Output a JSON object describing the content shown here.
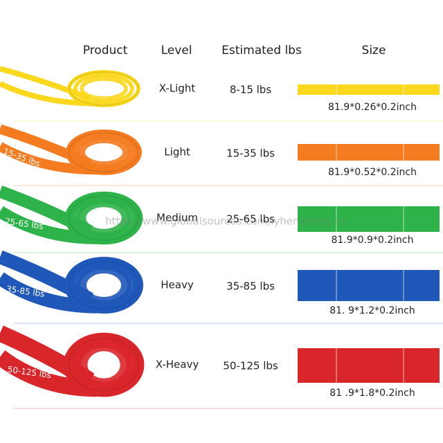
{
  "header": {
    "product": "Product",
    "level": "Level",
    "estimated": "Estimated lbs",
    "size": "Size"
  },
  "rows": [
    {
      "level": "X-Light",
      "lbs": "8-15 lbs",
      "size": "81.9*0.26*0.2inch",
      "color": "#f9d81e"
    },
    {
      "level": "Light",
      "lbs": "15-35 lbs",
      "size": "81.9*0.52*0.2inch",
      "color": "#f47b20",
      "band_label": "15-35 lbs"
    },
    {
      "level": "Medium",
      "lbs": "25-65 lbs",
      "size": "81.9*0.9*0.2inch",
      "color": "#2db34a",
      "band_label": "25-65 lbs"
    },
    {
      "level": "Heavy",
      "lbs": "35-85 lbs",
      "size": "81. 9*1.2*0.2inch",
      "color": "#1f58b9",
      "band_label": "35-85 lbs"
    },
    {
      "level": "X-Heavy",
      "lbs": "50-125 lbs",
      "size": "81 .9*1.8*0.2inch",
      "color": "#d9262b",
      "band_label": "50-125 lbs"
    }
  ],
  "watermark": "https://www.globalsources.com/lyhensheng.co"
}
